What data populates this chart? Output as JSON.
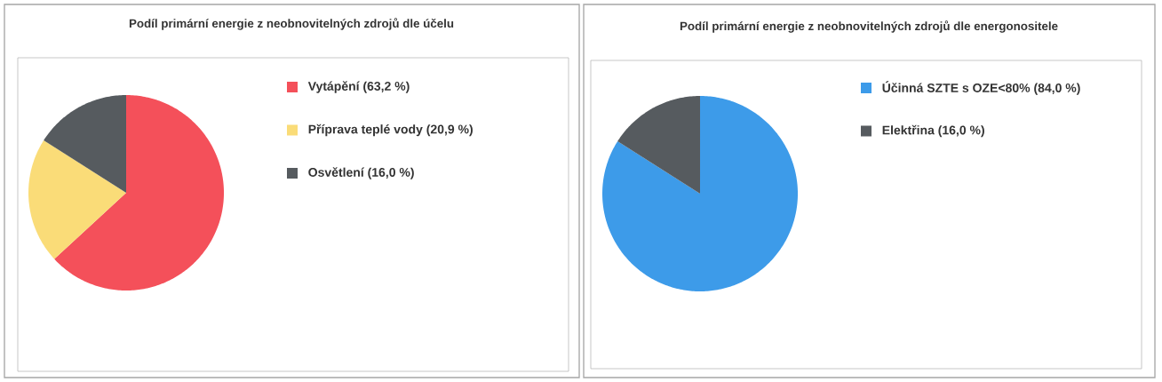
{
  "chart_data": [
    {
      "type": "pie",
      "title": "Podíl primární energie z neobnovitelných zdrojů dle účelu",
      "categories": [
        "Vytápění (63,2 %)",
        "Příprava teplé vody (20,9 %)",
        "Osvětlení (16,0 %)"
      ],
      "values": [
        63.2,
        20.9,
        16.0
      ],
      "colors": [
        "#f4505a",
        "#fadc78",
        "#565b5f"
      ],
      "legend": "right"
    },
    {
      "type": "pie",
      "title": "Podíl primární energie z neobnovitelných zdrojů dle energonositele",
      "categories": [
        "Účinná SZTE s OZE<80% (84,0 %)",
        "Elektřina (16,0 %)"
      ],
      "values": [
        84.0,
        16.0
      ],
      "colors": [
        "#3d9be9",
        "#565b5f"
      ],
      "legend": "right"
    }
  ]
}
